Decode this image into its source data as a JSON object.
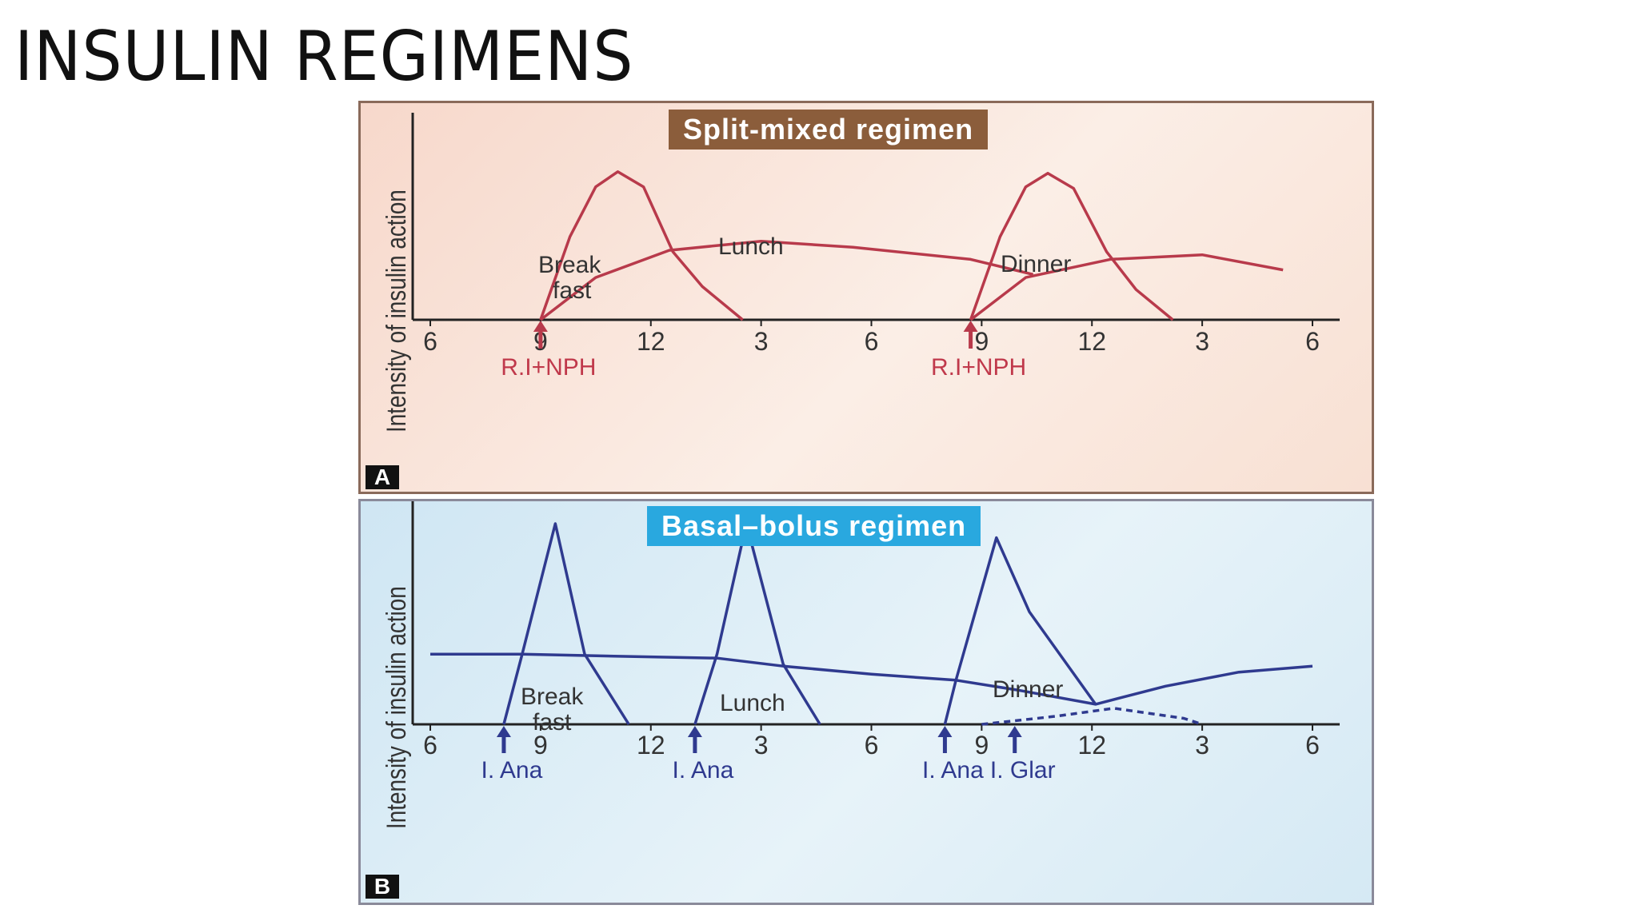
{
  "slide": {
    "title": "INSULIN REGIMENS"
  },
  "chart_data": [
    {
      "type": "line",
      "panel_letter": "A",
      "title": "Split-mixed regimen",
      "ylabel": "Intensity of insulin action",
      "x_tick_labels": [
        "6",
        "9",
        "12",
        "3",
        "6",
        "9",
        "12",
        "3",
        "6"
      ],
      "x_hours": [
        6,
        9,
        12,
        15,
        18,
        21,
        24,
        27,
        30
      ],
      "xlim": [
        6,
        30
      ],
      "ylim": [
        0,
        1
      ],
      "annotations": [
        "Break fast",
        "Lunch",
        "Dinner"
      ],
      "annotation_lines": {
        "breakfast": [
          "Break",
          "fast"
        ],
        "lunch": "Lunch",
        "dinner": "Dinner"
      },
      "dose_labels": [
        {
          "x": 9.0,
          "label": "R.I+NPH"
        },
        {
          "x": 20.7,
          "label": "R.I+NPH"
        }
      ],
      "series": [
        {
          "x": [
            9.0,
            9.8,
            10.5,
            11.1,
            11.8,
            12.6,
            13.4,
            14.5
          ],
          "y": [
            0.0,
            0.55,
            0.88,
            0.98,
            0.88,
            0.45,
            0.22,
            0.0
          ]
        },
        {
          "x": [
            9.0,
            10.5,
            12.5,
            15.0,
            17.5,
            20.7,
            22.4
          ],
          "y": [
            0.0,
            0.28,
            0.46,
            0.52,
            0.48,
            0.4,
            0.3
          ]
        },
        {
          "x": [
            20.7,
            21.5,
            22.2,
            22.8,
            23.5,
            24.4,
            25.2,
            26.2
          ],
          "y": [
            0.0,
            0.55,
            0.88,
            0.97,
            0.87,
            0.45,
            0.2,
            0.0
          ]
        },
        {
          "x": [
            20.7,
            22.2,
            24.5,
            27.0,
            29.2
          ],
          "y": [
            0.0,
            0.28,
            0.4,
            0.43,
            0.33
          ]
        }
      ],
      "colors": {
        "curve": "#b83a4b",
        "label": "#c0394b",
        "axis": "#222222",
        "title_bg": "#8b5d3b"
      }
    },
    {
      "type": "line",
      "panel_letter": "B",
      "title": "Basal–bolus regimen",
      "ylabel": "Intensity of insulin action",
      "x_tick_labels": [
        "6",
        "9",
        "12",
        "3",
        "6",
        "9",
        "12",
        "3",
        "6"
      ],
      "x_hours": [
        6,
        9,
        12,
        15,
        18,
        21,
        24,
        27,
        30
      ],
      "xlim": [
        6,
        30
      ],
      "ylim": [
        0,
        1
      ],
      "annotations": [
        "Break fast",
        "Lunch",
        "Dinner"
      ],
      "annotation_lines": {
        "breakfast": [
          "Break",
          "fast"
        ],
        "lunch": "Lunch",
        "dinner": "Dinner"
      },
      "dose_labels": [
        {
          "x": 8.0,
          "label": "I. Ana"
        },
        {
          "x": 13.2,
          "label": "I. Ana"
        },
        {
          "x": 20.0,
          "label": "I. Ana"
        },
        {
          "x": 21.9,
          "label": "I. Glar"
        }
      ],
      "series": [
        {
          "x": [
            8.0,
            8.5,
            9.4,
            10.2,
            11.4
          ],
          "y": [
            0.0,
            0.35,
            1.0,
            0.35,
            0.0
          ]
        },
        {
          "x": [
            13.2,
            13.8,
            14.6,
            15.6,
            16.6
          ],
          "y": [
            0.0,
            0.35,
            1.0,
            0.3,
            0.0
          ]
        },
        {
          "x": [
            20.0,
            20.3,
            21.4,
            22.3,
            24.1
          ],
          "y": [
            0.0,
            0.22,
            0.93,
            0.56,
            0.1
          ]
        },
        {
          "x": [
            6.0,
            8.5,
            11.0,
            13.8,
            15.6,
            18.0,
            20.3,
            22.0,
            24.1,
            26.0,
            28.0,
            30.0
          ],
          "y": [
            0.35,
            0.35,
            0.34,
            0.33,
            0.29,
            0.25,
            0.22,
            0.17,
            0.1,
            0.19,
            0.26,
            0.29
          ]
        },
        {
          "x": [
            21.0,
            23.0,
            24.6,
            26.5,
            27.0
          ],
          "y": [
            0.0,
            0.04,
            0.08,
            0.03,
            0.0
          ]
        }
      ],
      "colors": {
        "curve": "#2f3a8f",
        "label": "#2f3a8f",
        "axis": "#222222",
        "title_bg": "#29a8df"
      }
    }
  ]
}
